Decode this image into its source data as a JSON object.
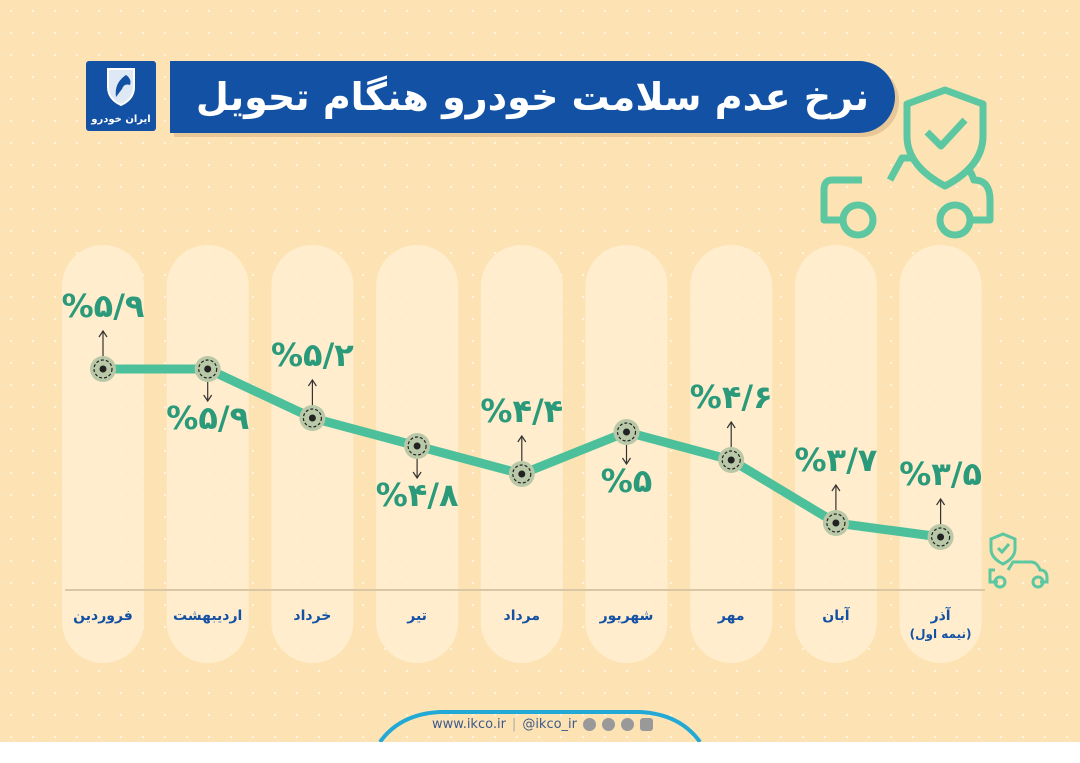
{
  "header": {
    "title": "نرخ عدم سلامت خودرو هنگام تحویل",
    "logo_text": "ایران خودرو"
  },
  "footer": {
    "website": "www.ikco.ir",
    "separator": "|",
    "handle": "@ikco_ir",
    "icons": [
      "aparat-icon",
      "telegram-icon",
      "bale-icon",
      "instagram-icon"
    ]
  },
  "colors": {
    "background": "#fde3b3",
    "title_bar": "#1351a4",
    "line": "#4cc09a",
    "label": "#2a9a7b",
    "month_label": "#1351a4",
    "icon": "#5cc7a0"
  },
  "chart_data": {
    "type": "line",
    "categories": [
      "فروردین",
      "اردیبهشت",
      "خرداد",
      "تیر",
      "مرداد",
      "شهریور",
      "مهر",
      "آبان",
      "آذر"
    ],
    "category_sublabels": [
      "",
      "",
      "",
      "",
      "",
      "",
      "",
      "",
      "(نیمه اول)"
    ],
    "values": [
      5.9,
      5.9,
      5.2,
      4.8,
      4.4,
      5.0,
      4.6,
      3.7,
      3.5
    ],
    "data_labels": [
      "%۵/۹",
      "%۵/۹",
      "%۵/۲",
      "%۴/۸",
      "%۴/۴",
      "%۵",
      "%۴/۶",
      "%۳/۷",
      "%۳/۵"
    ],
    "label_side": [
      "above",
      "below",
      "above",
      "below",
      "above",
      "below",
      "above",
      "above",
      "above"
    ],
    "direction": "rtl-to-ltr visual order left to right",
    "grid": false
  }
}
